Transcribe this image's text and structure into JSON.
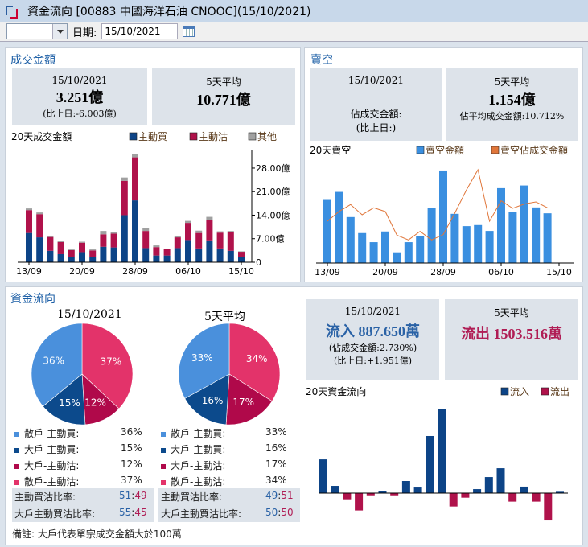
{
  "window": {
    "title": "資金流向 [00883  中國海洋石油  CNOOC](15/10/2021)"
  },
  "toolbar": {
    "combo_value": "",
    "date_label": "日期:",
    "date_value": "15/10/2021"
  },
  "colors": {
    "buy": "#0d4487",
    "sell": "#b0124b",
    "other": "#a0a0a0",
    "short": "#3a8fe0",
    "short_line": "#e0763a",
    "retail_buy": "#4a90dc",
    "big_buy": "#0c4a8c",
    "big_sell": "#b0094a",
    "retail_sell": "#e3336a"
  },
  "turnover": {
    "title": "成交金額",
    "today": {
      "date": "15/10/2021",
      "value": "3.251億",
      "diff": "(比上日:-6.003億)"
    },
    "avg5": {
      "label": "5天平均",
      "value": "10.771億"
    }
  },
  "short": {
    "title": "賣空",
    "today": {
      "date": "15/10/2021",
      "ratio": "佔成交金額:",
      "diff": "(比上日:)"
    },
    "avg5": {
      "label": "5天平均",
      "value": "1.154億",
      "ratio": "佔平均成交金額:10.712%"
    }
  },
  "flow": {
    "title": "資金流向",
    "pie_today_title": "15/10/2021",
    "pie_avg_title": "5天平均",
    "legend": [
      {
        "label": "散戶-主動買:",
        "today": "36%",
        "avg": "33%"
      },
      {
        "label": "大戶-主動買:",
        "today": "15%",
        "avg": "16%"
      },
      {
        "label": "大戶-主動沽:",
        "today": "12%",
        "avg": "17%"
      },
      {
        "label": "散戶-主動沽:",
        "today": "37%",
        "avg": "34%"
      }
    ],
    "ratio1_label": "主動買沽比率:",
    "ratio1_today_buy": "51",
    "ratio1_today_sell": "49",
    "ratio1_avg_buy": "49",
    "ratio1_avg_sell": "51",
    "ratio2_label": "大戶主動買沽比率:",
    "ratio2_today_buy": "55",
    "ratio2_today_sell": "45",
    "ratio2_avg_buy": "50",
    "ratio2_avg_sell": "50",
    "sep": ":",
    "today": {
      "date": "15/10/2021",
      "value": "流入 887.650萬",
      "ratio": "(佔成交金額:2.730%)",
      "diff": "(比上日:+1.951億)"
    },
    "avg5": {
      "label": "5天平均",
      "value": "流出 1503.516萬"
    },
    "note": "備註: 大戶代表單宗成交金額大於100萬"
  },
  "chart_data": [
    {
      "type": "bar",
      "stacked": true,
      "title": "20天成交金額",
      "unit": "億",
      "ylim": [
        0,
        33
      ],
      "yticks": [
        "0",
        "7.00億",
        "14.00億",
        "21.00億",
        "28.00億"
      ],
      "ytick_values": [
        0,
        7,
        14,
        21,
        28
      ],
      "xtick_labels": [
        "13/09",
        "20/09",
        "28/09",
        "06/10",
        "15/10"
      ],
      "xtick_index": [
        0,
        5,
        10,
        15,
        20
      ],
      "series": [
        {
          "name": "主動買",
          "values": [
            8.7,
            7.4,
            3.4,
            2.4,
            1.6,
            3.0,
            1.6,
            4.6,
            4.4,
            14.0,
            18.4,
            4.2,
            2.0,
            2.0,
            4.2,
            6.6,
            4.1,
            6.5,
            4.1,
            3.4,
            1.6
          ]
        },
        {
          "name": "主動沽",
          "values": [
            6.8,
            6.9,
            4.1,
            3.6,
            2.0,
            2.8,
            1.9,
            3.7,
            4.1,
            10.2,
            12.8,
            5.1,
            2.5,
            2.0,
            3.2,
            5.1,
            4.6,
            6.0,
            4.7,
            5.7,
            1.5
          ]
        },
        {
          "name": "其他",
          "values": [
            0.5,
            0.5,
            0.4,
            0.4,
            0.2,
            0.3,
            0.3,
            1.0,
            0.5,
            1.0,
            0.9,
            0.9,
            0.5,
            0.0,
            0.5,
            0.6,
            0.7,
            1.0,
            0.4,
            0.2,
            0.15
          ]
        }
      ]
    },
    {
      "type": "bar+line",
      "title": "20天賣空",
      "bar_ylim": [
        0,
        1.8
      ],
      "line_ylim": [
        0,
        18
      ],
      "xtick_labels": [
        "13/09",
        "20/09",
        "28/09",
        "06/10",
        "15/10"
      ],
      "xtick_index": [
        0,
        5,
        10,
        15,
        20
      ],
      "series": [
        {
          "name": "賣空金額",
          "unit": "億",
          "values": [
            1.18,
            1.33,
            0.86,
            0.56,
            0.39,
            0.59,
            0.2,
            0.39,
            0.51,
            1.03,
            1.73,
            0.92,
            0.69,
            0.71,
            0.6,
            1.4,
            0.95,
            1.45,
            1.04,
            0.93
          ]
        },
        {
          "name": "賣空佔成交金額",
          "unit": "%",
          "values": [
            7.8,
            9.6,
            10.9,
            9.0,
            10.3,
            9.6,
            5.2,
            4.3,
            5.9,
            4.3,
            5.3,
            9.3,
            13.6,
            17.4,
            7.8,
            11.6,
            10.2,
            11.0,
            11.4,
            10.3
          ]
        }
      ]
    },
    {
      "type": "bar",
      "title": "20天資金流向",
      "unit": "億",
      "ylim": [
        -2,
        6
      ],
      "legend": [
        "流入",
        "流出"
      ],
      "values": [
        2.29,
        0.49,
        -0.42,
        -1.18,
        -0.15,
        0.16,
        -0.15,
        0.82,
        0.38,
        3.88,
        5.73,
        -0.91,
        -0.31,
        0.27,
        1.09,
        1.69,
        -0.58,
        0.44,
        -0.58,
        -1.86,
        0.09
      ]
    },
    {
      "type": "pie",
      "title": "15/10/2021",
      "labels": [
        "散戶-主動沽",
        "大戶-主動沽",
        "大戶-主動買",
        "散戶-主動買"
      ],
      "values": [
        37,
        12,
        15,
        36
      ]
    },
    {
      "type": "pie",
      "title": "5天平均",
      "labels": [
        "散戶-主動沽",
        "大戶-主動沽",
        "大戶-主動買",
        "散戶-主動買"
      ],
      "values": [
        34,
        17,
        16,
        33
      ]
    }
  ]
}
